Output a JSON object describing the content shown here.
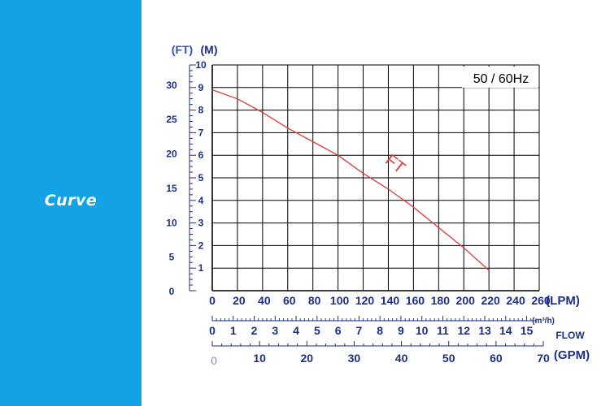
{
  "sidebar": {
    "label": "Curve",
    "color": "#11a3e6"
  },
  "chart_data": {
    "type": "line",
    "annotation": "50 / 60Hz",
    "unit_labels": {
      "ft": "(FT)",
      "m": "(M)",
      "lpm": "(LPM)",
      "m3h": "(m³/h)",
      "flow": "FLOW",
      "gpm": "(GPM)"
    },
    "y_m_ticks": [
      "0",
      "1",
      "2",
      "3",
      "4",
      "5",
      "6",
      "7",
      "8",
      "9",
      "10"
    ],
    "y_ft_ticks": [
      "0",
      "5",
      "10",
      "15",
      "20",
      "25",
      "30"
    ],
    "x_lpm_ticks": [
      "0",
      "20",
      "40",
      "60",
      "80",
      "100",
      "120",
      "140",
      "160",
      "180",
      "200",
      "220",
      "240",
      "260"
    ],
    "x_m3h_ticks": [
      "0",
      "1",
      "2",
      "3",
      "4",
      "5",
      "6",
      "7",
      "8",
      "9",
      "10",
      "11",
      "12",
      "13",
      "14",
      "15"
    ],
    "x_gpm_ticks": [
      "0",
      "10",
      "20",
      "30",
      "40",
      "50",
      "60",
      "70"
    ],
    "xlim_lpm": [
      0,
      260
    ],
    "ylim_m": [
      0,
      10
    ],
    "grid": true,
    "series": [
      {
        "name": "FT",
        "color": "#e03a3a",
        "x": [
          0,
          20,
          40,
          60,
          80,
          100,
          120,
          140,
          160,
          180,
          200,
          220
        ],
        "y": [
          8.9,
          8.5,
          7.9,
          7.2,
          6.6,
          6.0,
          5.2,
          4.5,
          3.7,
          2.8,
          1.9,
          0.9
        ]
      }
    ],
    "colors": {
      "axis_text": "#1c2f86",
      "grid": "#000000"
    }
  }
}
